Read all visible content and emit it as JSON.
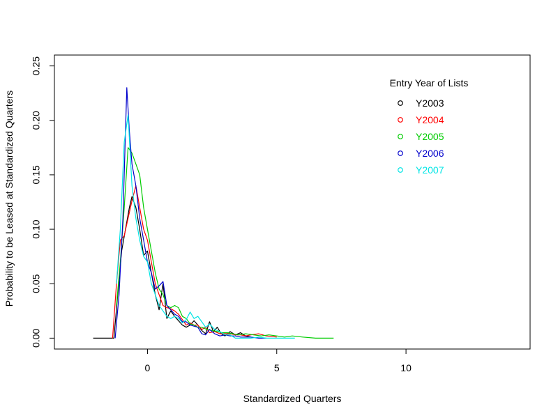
{
  "chart_data": {
    "type": "line",
    "xlabel": "Standardized Quarters",
    "ylabel": "Probability to be Leased at Standardized Quarters",
    "xlim": [
      -3.6,
      14.8
    ],
    "ylim": [
      -0.01,
      0.26
    ],
    "x_ticks": [
      0,
      5,
      10
    ],
    "x_tick_labels": [
      "0",
      "5",
      "10"
    ],
    "y_ticks": [
      0.0,
      0.05,
      0.1,
      0.15,
      0.2,
      0.25
    ],
    "y_tick_labels": [
      "0.00",
      "0.05",
      "0.10",
      "0.15",
      "0.20",
      "0.25"
    ],
    "grid": false,
    "legend": {
      "title": "Entry Year of Lists",
      "placement": "top-right"
    },
    "series": [
      {
        "name": "Y2003",
        "color": "#000000",
        "x": [
          -2.1,
          -1.3,
          -1.15,
          -1.0,
          -0.85,
          -0.7,
          -0.6,
          -0.45,
          -0.3,
          -0.15,
          0.0,
          0.15,
          0.3,
          0.45,
          0.6,
          0.75,
          0.9,
          1.05,
          1.2,
          1.35,
          1.5,
          1.65,
          1.8,
          1.95,
          2.1,
          2.25,
          2.4,
          2.55,
          2.7,
          2.85,
          3.0,
          3.2,
          3.4,
          3.6,
          3.8,
          4.0
        ],
        "y": [
          0.0,
          0.0,
          0.04,
          0.08,
          0.1,
          0.12,
          0.13,
          0.12,
          0.1,
          0.076,
          0.08,
          0.06,
          0.04,
          0.026,
          0.05,
          0.018,
          0.025,
          0.02,
          0.016,
          0.012,
          0.01,
          0.012,
          0.016,
          0.012,
          0.007,
          0.004,
          0.015,
          0.006,
          0.01,
          0.004,
          0.002,
          0.006,
          0.003,
          0.005,
          0.002,
          0.001
        ]
      },
      {
        "name": "Y2004",
        "color": "#ff0000",
        "x": [
          -1.35,
          -1.2,
          -1.05,
          -0.9,
          -0.75,
          -0.6,
          -0.45,
          -0.3,
          -0.15,
          0.0,
          0.15,
          0.3,
          0.45,
          0.6,
          0.75,
          0.9,
          1.05,
          1.2,
          1.35,
          1.5,
          1.65,
          1.8,
          1.95,
          2.1,
          2.25,
          2.4,
          2.6,
          2.8,
          3.0,
          3.2,
          3.4,
          3.6,
          3.8,
          4.0,
          4.3,
          4.6,
          5.0
        ],
        "y": [
          0.0,
          0.05,
          0.09,
          0.094,
          0.11,
          0.126,
          0.14,
          0.12,
          0.1,
          0.09,
          0.07,
          0.05,
          0.04,
          0.03,
          0.028,
          0.027,
          0.025,
          0.022,
          0.017,
          0.012,
          0.014,
          0.012,
          0.012,
          0.008,
          0.01,
          0.005,
          0.006,
          0.004,
          0.004,
          0.004,
          0.003,
          0.003,
          0.002,
          0.003,
          0.004,
          0.002,
          0.001
        ]
      },
      {
        "name": "Y2005",
        "color": "#00cc00",
        "x": [
          -1.2,
          -1.05,
          -0.9,
          -0.75,
          -0.6,
          -0.45,
          -0.3,
          -0.15,
          0.0,
          0.15,
          0.3,
          0.45,
          0.6,
          0.75,
          0.9,
          1.05,
          1.2,
          1.35,
          1.5,
          1.65,
          1.8,
          1.95,
          2.1,
          2.3,
          2.5,
          2.7,
          2.9,
          3.1,
          3.3,
          3.5,
          3.8,
          4.1,
          4.4,
          4.7,
          5.0,
          5.3,
          5.6,
          6.0,
          6.5,
          7.2
        ],
        "y": [
          0.03,
          0.07,
          0.12,
          0.175,
          0.17,
          0.16,
          0.15,
          0.12,
          0.1,
          0.08,
          0.06,
          0.045,
          0.04,
          0.03,
          0.028,
          0.03,
          0.028,
          0.02,
          0.018,
          0.013,
          0.012,
          0.01,
          0.01,
          0.008,
          0.007,
          0.006,
          0.005,
          0.005,
          0.004,
          0.003,
          0.004,
          0.003,
          0.002,
          0.003,
          0.002,
          0.001,
          0.002,
          0.001,
          0.0,
          0.0
        ]
      },
      {
        "name": "Y2006",
        "color": "#0000cc",
        "x": [
          -1.25,
          -1.1,
          -0.95,
          -0.8,
          -0.7,
          -0.6,
          -0.45,
          -0.3,
          -0.15,
          0.0,
          0.15,
          0.3,
          0.45,
          0.6,
          0.75,
          0.9,
          1.05,
          1.2,
          1.35,
          1.5,
          1.65,
          1.8,
          1.95,
          2.1,
          2.25,
          2.4,
          2.6,
          2.8,
          3.0,
          3.2,
          3.4,
          3.6,
          3.8,
          4.0,
          4.3,
          4.6
        ],
        "y": [
          0.0,
          0.04,
          0.11,
          0.23,
          0.19,
          0.16,
          0.14,
          0.11,
          0.09,
          0.07,
          0.06,
          0.045,
          0.048,
          0.052,
          0.03,
          0.026,
          0.022,
          0.02,
          0.015,
          0.015,
          0.012,
          0.011,
          0.01,
          0.004,
          0.003,
          0.008,
          0.004,
          0.002,
          0.003,
          0.002,
          0.002,
          0.001,
          0.001,
          0.001,
          0.0,
          0.0
        ]
      },
      {
        "name": "Y2007",
        "color": "#00e5e5",
        "x": [
          -1.2,
          -1.05,
          -0.9,
          -0.75,
          -0.6,
          -0.45,
          -0.3,
          -0.15,
          0.0,
          0.15,
          0.3,
          0.45,
          0.6,
          0.75,
          0.9,
          1.05,
          1.2,
          1.35,
          1.5,
          1.65,
          1.8,
          1.95,
          2.1,
          2.25,
          2.4,
          2.6,
          2.8,
          3.0,
          3.2,
          3.4,
          3.6,
          3.8,
          4.0,
          4.3,
          4.6,
          5.0,
          5.3,
          5.7
        ],
        "y": [
          0.05,
          0.1,
          0.18,
          0.205,
          0.14,
          0.11,
          0.09,
          0.075,
          0.07,
          0.05,
          0.04,
          0.03,
          0.025,
          0.02,
          0.018,
          0.02,
          0.018,
          0.014,
          0.017,
          0.024,
          0.018,
          0.02,
          0.015,
          0.01,
          0.013,
          0.008,
          0.006,
          0.003,
          0.003,
          0.0,
          0.0,
          0.0,
          0.0,
          0.001,
          0.0,
          0.0,
          0.0,
          0.0
        ]
      }
    ]
  }
}
